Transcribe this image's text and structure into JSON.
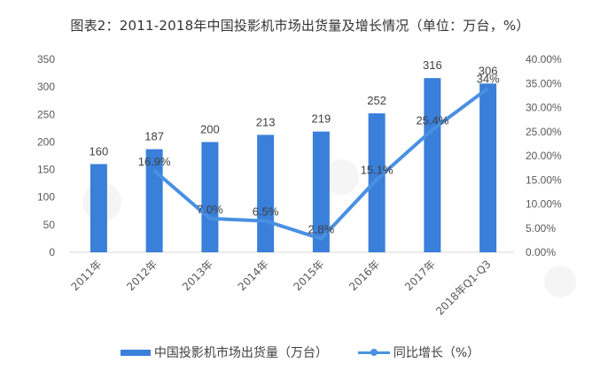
{
  "title": "图表2：2011-2018年中国投影机市场出货量及增长情况（单位：万台，%）",
  "legend": {
    "bar_label": "中国投影机市场出货量（万台）",
    "line_label": "同比增长（%）"
  },
  "colors": {
    "bar": "#3A7FD9",
    "line": "#4A90E2",
    "axis": "#D9D9D9"
  },
  "chart_data": {
    "type": "bar+line",
    "title": "图表2：2011-2018年中国投影机市场出货量及增长情况（单位：万台，%）",
    "categories": [
      "2011年",
      "2012年",
      "2013年",
      "2014年",
      "2015年",
      "2016年",
      "2017年",
      "2018年Q1-Q3"
    ],
    "series": [
      {
        "name": "中国投影机市场出货量（万台）",
        "type": "bar",
        "axis": "left",
        "values": [
          160,
          187,
          200,
          213,
          219,
          252,
          316,
          306
        ],
        "labels": [
          "160",
          "187",
          "200",
          "213",
          "219",
          "252",
          "316",
          "306"
        ]
      },
      {
        "name": "同比增长（%）",
        "type": "line",
        "axis": "right",
        "values": [
          null,
          16.9,
          7.0,
          6.5,
          2.8,
          15.1,
          25.4,
          34.0
        ],
        "labels": [
          "",
          "16.9%",
          "7.0%",
          "6.5%",
          "2.8%",
          "15.1%",
          "25.4%",
          "34%"
        ]
      }
    ],
    "y_left": {
      "ylim": [
        0,
        350
      ],
      "ticks": [
        "0",
        "50",
        "100",
        "150",
        "200",
        "250",
        "300",
        "350"
      ]
    },
    "y_right": {
      "ylim": [
        0,
        40
      ],
      "ticks": [
        "0.00%",
        "5.00%",
        "10.00%",
        "15.00%",
        "20.00%",
        "25.00%",
        "30.00%",
        "35.00%",
        "40.00%"
      ]
    },
    "xlabel": "",
    "ylabel": "",
    "grid": false,
    "legend_position": "bottom"
  }
}
